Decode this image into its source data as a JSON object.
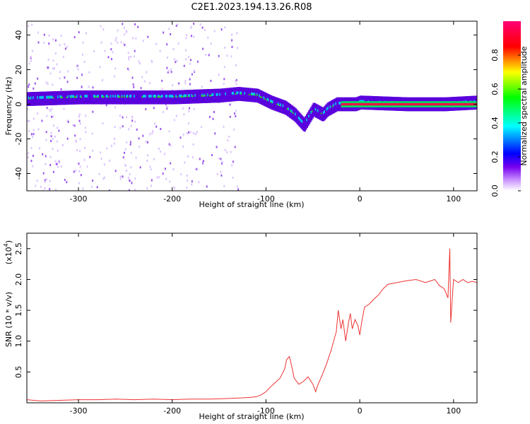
{
  "title": "C2E1.2023.194.13.26.R08",
  "chart_data": [
    {
      "type": "heatmap",
      "xlabel": "Height of straight line (km)",
      "ylabel": "Frequency (Hz)",
      "xlim": [
        -355,
        125
      ],
      "ylim": [
        -50,
        48
      ],
      "x_ticks": [
        -300,
        -200,
        -100,
        0,
        100
      ],
      "x_tick_labels": [
        "-300",
        "-200",
        "-100",
        "0",
        "100"
      ],
      "y_ticks": [
        40,
        20,
        0,
        -20,
        -40
      ],
      "y_tick_labels": [
        "40",
        "20",
        "0",
        "-20",
        "-40"
      ],
      "colorbar": {
        "label": "Normalized spectral amplitude",
        "range": [
          0,
          1
        ],
        "ticks": [
          0.0,
          0.2,
          0.4,
          0.6,
          0.8
        ],
        "tick_labels": [
          "0.0",
          "0.2",
          "0.4",
          "0.6",
          "0.8"
        ],
        "colors": [
          "#ffffff",
          "#cc99ff",
          "#7700ee",
          "#0000ff",
          "#00ffff",
          "#00ff00",
          "#ffff00",
          "#ff0000",
          "#ff0077"
        ]
      },
      "ridge": [
        {
          "x": -355,
          "y": 3
        },
        {
          "x": -300,
          "y": 4
        },
        {
          "x": -250,
          "y": 4
        },
        {
          "x": -200,
          "y": 4
        },
        {
          "x": -150,
          "y": 5
        },
        {
          "x": -130,
          "y": 6
        },
        {
          "x": -110,
          "y": 5
        },
        {
          "x": -95,
          "y": 1
        },
        {
          "x": -80,
          "y": -2
        },
        {
          "x": -70,
          "y": -6
        },
        {
          "x": -60,
          "y": -12
        },
        {
          "x": -50,
          "y": -3
        },
        {
          "x": -40,
          "y": -6
        },
        {
          "x": -35,
          "y": -3
        },
        {
          "x": -25,
          "y": 0
        },
        {
          "x": -5,
          "y": 0
        },
        {
          "x": 0,
          "y": 1
        },
        {
          "x": 50,
          "y": 0
        },
        {
          "x": 90,
          "y": 0
        },
        {
          "x": 125,
          "y": 1
        }
      ],
      "grid": false
    },
    {
      "type": "line",
      "xlabel": "Height of straight line (km)",
      "ylabel": "SNR (10 * v/v)",
      "y_scale_label": "(x10",
      "y_scale_exponent": "4",
      "y_scale_suffix": ")",
      "color": "#ee3333",
      "xlim": [
        -355,
        125
      ],
      "ylim": [
        0,
        2.75
      ],
      "x_ticks": [
        -300,
        -200,
        -100,
        0,
        100
      ],
      "x_tick_labels": [
        "-300",
        "-200",
        "-100",
        "0",
        "100"
      ],
      "y_ticks": [
        0.5,
        1.0,
        1.5,
        2.0,
        2.5
      ],
      "y_tick_labels": [
        "0.5",
        "1.0",
        "1.5",
        "2.0",
        "2.5"
      ],
      "series": [
        {
          "x": [
            -355,
            -340,
            -320,
            -300,
            -280,
            -260,
            -240,
            -220,
            -200,
            -180,
            -160,
            -140,
            -125,
            -115,
            -110,
            -105,
            -100,
            -95,
            -90,
            -85,
            -80,
            -78,
            -75,
            -72,
            -70,
            -65,
            -60,
            -55,
            -50,
            -47,
            -45,
            -40,
            -35,
            -30,
            -27,
            -25,
            -23,
            -20,
            -18,
            -15,
            -12,
            -10,
            -8,
            -5,
            -2,
            0,
            2,
            5,
            10,
            15,
            20,
            25,
            30,
            40,
            50,
            60,
            70,
            80,
            85,
            90,
            94,
            96,
            97,
            100,
            105,
            110,
            115,
            120,
            125
          ],
          "y": [
            0.05,
            0.03,
            0.04,
            0.05,
            0.05,
            0.06,
            0.05,
            0.06,
            0.05,
            0.06,
            0.06,
            0.07,
            0.08,
            0.09,
            0.1,
            0.13,
            0.18,
            0.26,
            0.33,
            0.4,
            0.55,
            0.7,
            0.75,
            0.55,
            0.4,
            0.3,
            0.35,
            0.42,
            0.3,
            0.18,
            0.28,
            0.45,
            0.65,
            0.88,
            1.05,
            1.15,
            1.5,
            1.2,
            1.35,
            1.0,
            1.3,
            1.45,
            1.2,
            1.35,
            1.25,
            1.1,
            1.3,
            1.55,
            1.6,
            1.68,
            1.75,
            1.85,
            1.92,
            1.95,
            1.98,
            2.0,
            1.95,
            2.0,
            1.9,
            1.85,
            1.7,
            2.5,
            1.3,
            2.0,
            1.95,
            2.0,
            1.95,
            1.97,
            1.95
          ]
        }
      ],
      "grid": false
    }
  ]
}
